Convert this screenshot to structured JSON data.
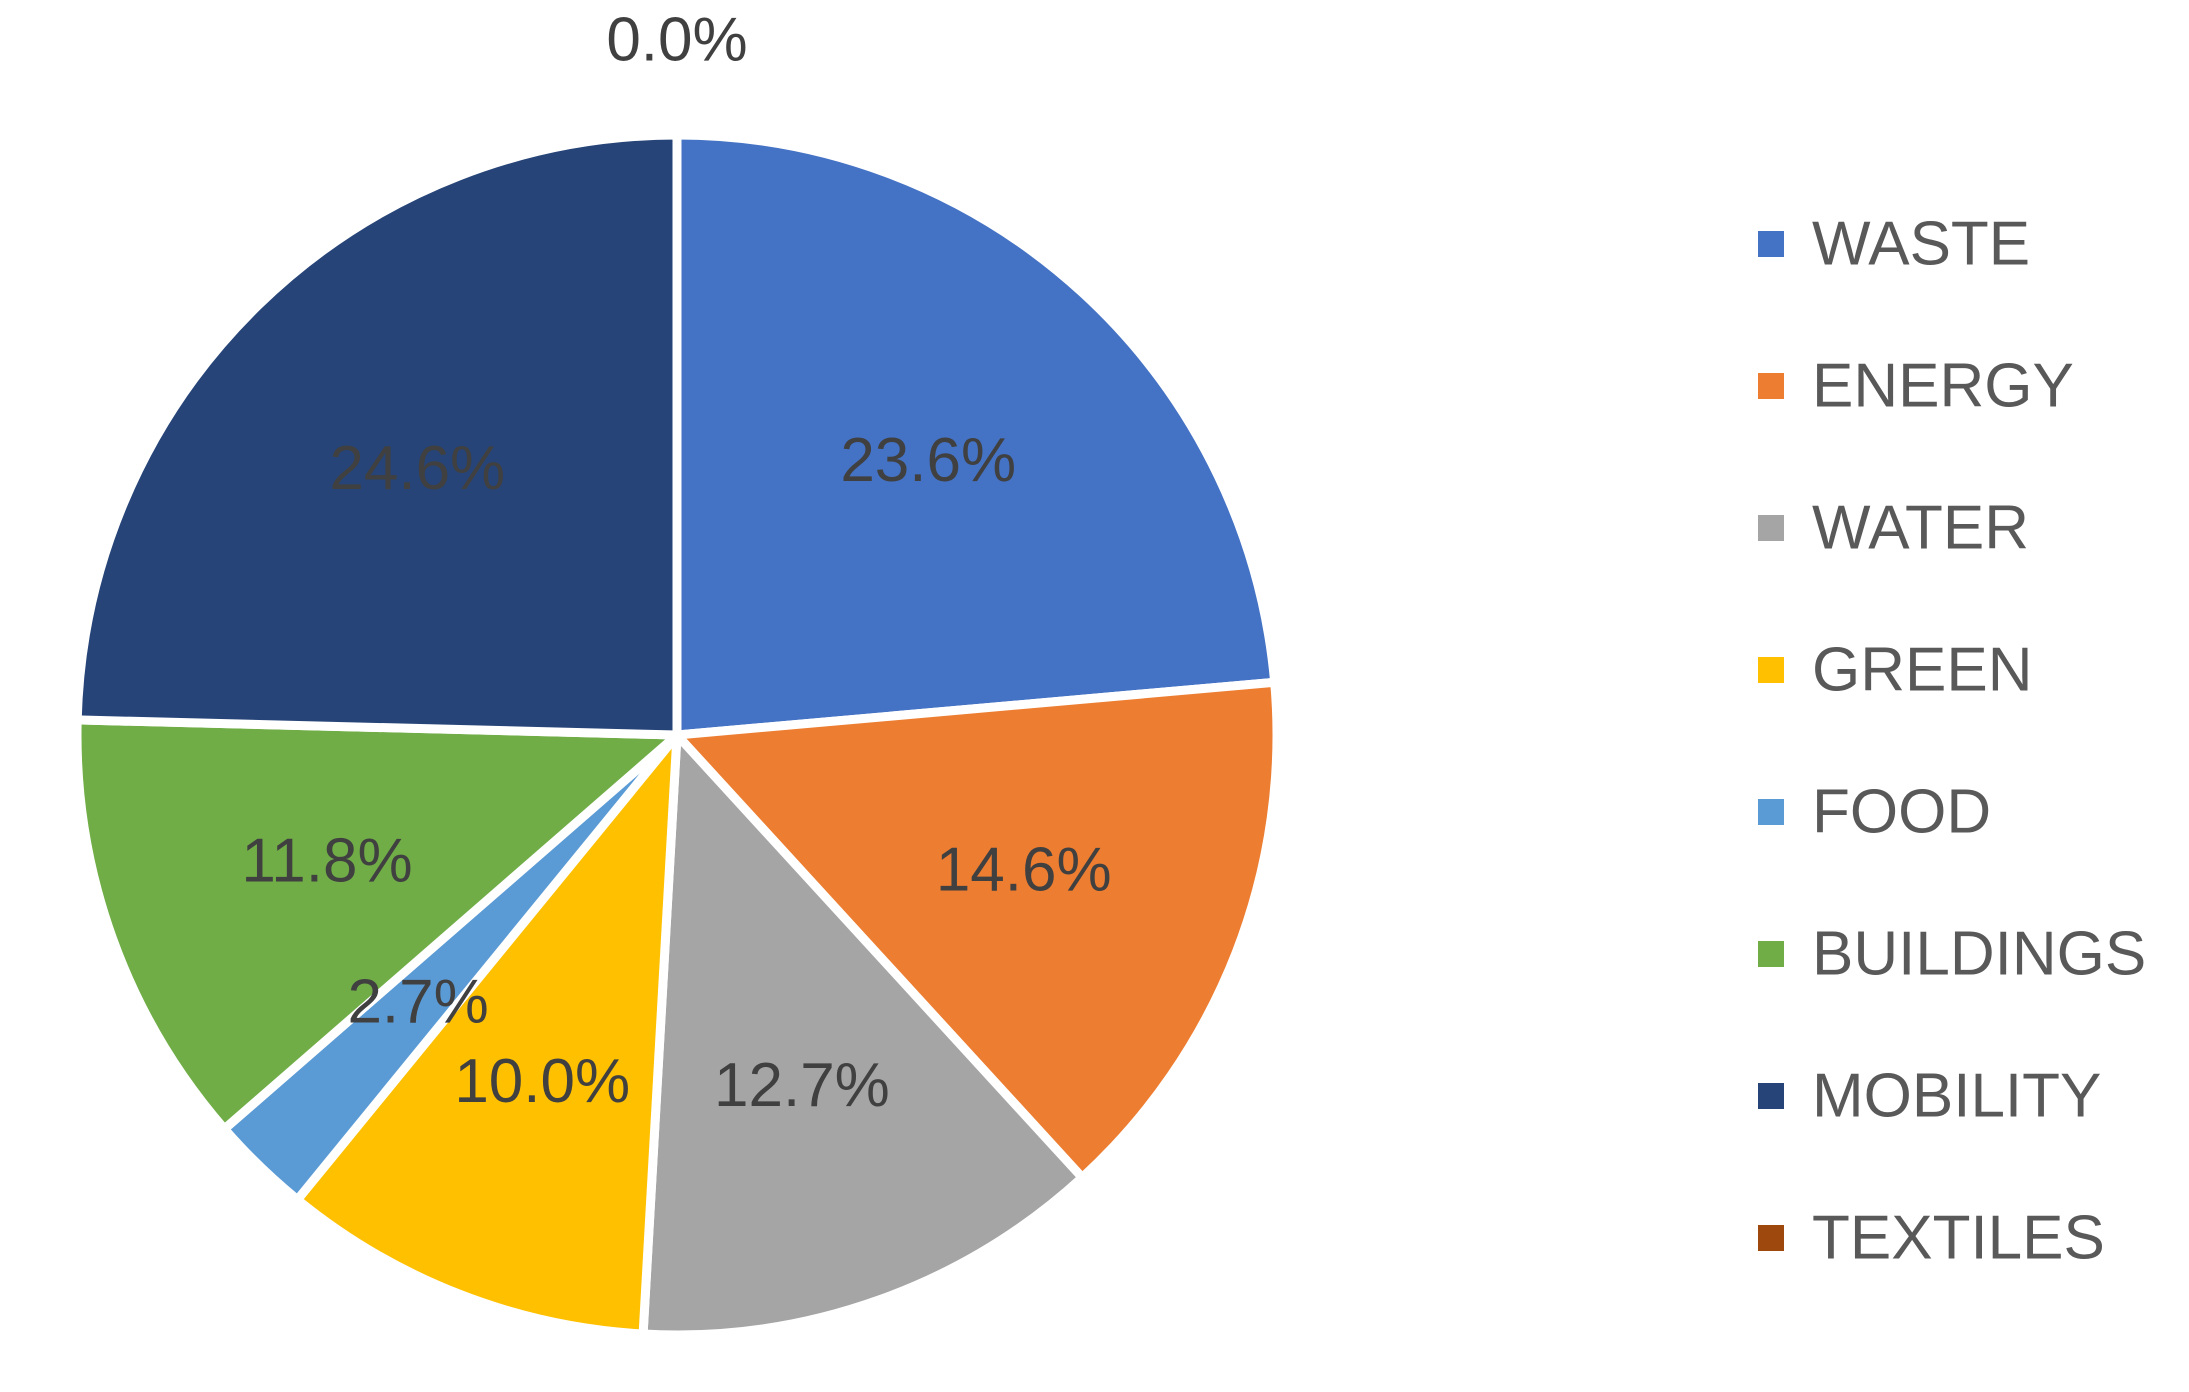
{
  "chart_data": {
    "type": "pie",
    "categories": [
      "WASTE",
      "ENERGY",
      "WATER",
      "GREEN",
      "FOOD",
      "BUILDINGS",
      "MOBILITY",
      "TEXTILES"
    ],
    "values": [
      23.6,
      14.6,
      12.7,
      10.0,
      2.7,
      11.8,
      24.6,
      0.0
    ],
    "data_labels": [
      "23.6%",
      "14.6%",
      "12.7%",
      "10.0%",
      "2.7%",
      "11.8%",
      "24.6%",
      "0.0%"
    ],
    "colors": [
      "#4472C4",
      "#ED7D31",
      "#A5A5A5",
      "#FFC000",
      "#5B9BD5",
      "#70AD47",
      "#264478",
      "#9E480E"
    ],
    "unit": "%",
    "legend_position": "right",
    "title": ""
  }
}
